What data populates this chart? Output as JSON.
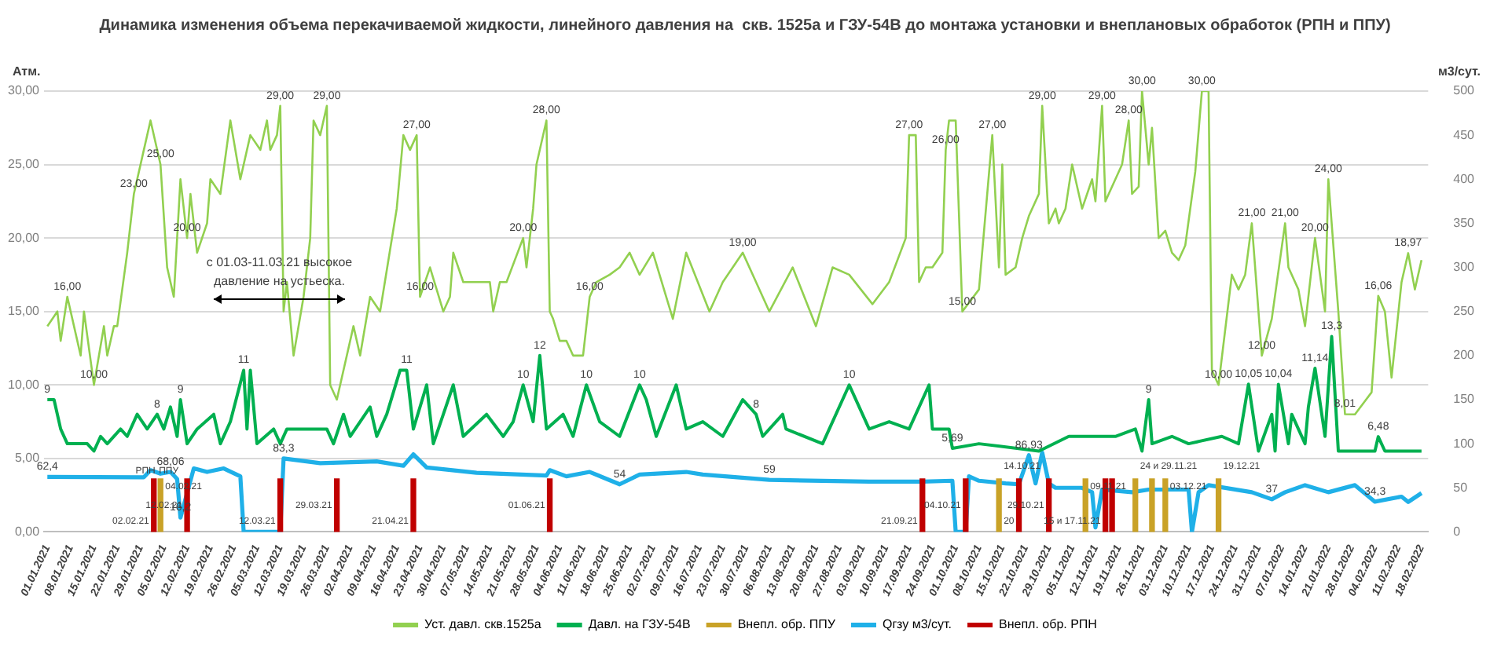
{
  "chart_data": {
    "type": "line",
    "title": "Динамика изменения объема перекачиваемой жидкости, линейного давления на  скв. 1525а и ГЗУ-54В до монтажа установки и внеплановых обработок (РПН и ППУ)",
    "ylabel": "Атм.",
    "y2label": "м3/сут.",
    "xlim": [
      "2020-12-31",
      "2022-02-20"
    ],
    "xticks": [
      {
        "value": "2021-01-01",
        "label": "01.01.2021"
      },
      {
        "value": "2021-01-08",
        "label": "08.01.2021"
      },
      {
        "value": "2021-01-15",
        "label": "15.01.2021"
      },
      {
        "value": "2021-01-22",
        "label": "22.01.2021"
      },
      {
        "value": "2021-01-29",
        "label": "29.01.2021"
      },
      {
        "value": "2021-02-05",
        "label": "05.02.2021"
      },
      {
        "value": "2021-02-12",
        "label": "12.02.2021"
      },
      {
        "value": "2021-02-19",
        "label": "19.02.2021"
      },
      {
        "value": "2021-02-26",
        "label": "26.02.2021"
      },
      {
        "value": "2021-03-05",
        "label": "05.03.2021"
      },
      {
        "value": "2021-03-12",
        "label": "12.03.2021"
      },
      {
        "value": "2021-03-19",
        "label": "19.03.2021"
      },
      {
        "value": "2021-03-26",
        "label": "26.03.2021"
      },
      {
        "value": "2021-04-02",
        "label": "02.04.2021"
      },
      {
        "value": "2021-04-09",
        "label": "09.04.2021"
      },
      {
        "value": "2021-04-16",
        "label": "16.04.2021"
      },
      {
        "value": "2021-04-23",
        "label": "23.04.2021"
      },
      {
        "value": "2021-04-30",
        "label": "30.04.2021"
      },
      {
        "value": "2021-05-07",
        "label": "07.05.2021"
      },
      {
        "value": "2021-05-14",
        "label": "14.05.2021"
      },
      {
        "value": "2021-05-21",
        "label": "21.05.2021"
      },
      {
        "value": "2021-05-28",
        "label": "28.05.2021"
      },
      {
        "value": "2021-06-04",
        "label": "04.06.2021"
      },
      {
        "value": "2021-06-11",
        "label": "11.06.2021"
      },
      {
        "value": "2021-06-18",
        "label": "18.06.2021"
      },
      {
        "value": "2021-06-25",
        "label": "25.06.2021"
      },
      {
        "value": "2021-07-02",
        "label": "02.07.2021"
      },
      {
        "value": "2021-07-09",
        "label": "09.07.2021"
      },
      {
        "value": "2021-07-16",
        "label": "16.07.2021"
      },
      {
        "value": "2021-07-23",
        "label": "23.07.2021"
      },
      {
        "value": "2021-07-30",
        "label": "30.07.2021"
      },
      {
        "value": "2021-08-06",
        "label": "06.08.2021"
      },
      {
        "value": "2021-08-13",
        "label": "13.08.2021"
      },
      {
        "value": "2021-08-20",
        "label": "20.08.2021"
      },
      {
        "value": "2021-08-27",
        "label": "27.08.2021"
      },
      {
        "value": "2021-09-03",
        "label": "03.09.2021"
      },
      {
        "value": "2021-09-10",
        "label": "10.09.2021"
      },
      {
        "value": "2021-09-17",
        "label": "17.09.2021"
      },
      {
        "value": "2021-09-24",
        "label": "24.09.2021"
      },
      {
        "value": "2021-10-01",
        "label": "01.10.2021"
      },
      {
        "value": "2021-10-08",
        "label": "08.10.2021"
      },
      {
        "value": "2021-10-15",
        "label": "15.10.2021"
      },
      {
        "value": "2021-10-22",
        "label": "22.10.2021"
      },
      {
        "value": "2021-10-29",
        "label": "29.10.2021"
      },
      {
        "value": "2021-11-05",
        "label": "05.11.2021"
      },
      {
        "value": "2021-11-12",
        "label": "12.11.2021"
      },
      {
        "value": "2021-11-19",
        "label": "19.11.2021"
      },
      {
        "value": "2021-11-26",
        "label": "26.11.2021"
      },
      {
        "value": "2021-12-03",
        "label": "03.12.2021"
      },
      {
        "value": "2021-12-10",
        "label": "10.12.2021"
      },
      {
        "value": "2021-12-17",
        "label": "17.12.2021"
      },
      {
        "value": "2021-12-24",
        "label": "24.12.2021"
      },
      {
        "value": "2021-12-31",
        "label": "31.12.2021"
      },
      {
        "value": "2022-01-07",
        "label": "07.01.2022"
      },
      {
        "value": "2022-01-14",
        "label": "14.01.2022"
      },
      {
        "value": "2022-01-21",
        "label": "21.01.2022"
      },
      {
        "value": "2022-01-28",
        "label": "28.01.2022"
      },
      {
        "value": "2022-02-04",
        "label": "04.02.2022"
      },
      {
        "value": "2022-02-11",
        "label": "11.02.2022"
      },
      {
        "value": "2022-02-18",
        "label": "18.02.2022"
      }
    ],
    "ylim": [
      0,
      30
    ],
    "yticks": [
      {
        "value": 0,
        "label": "0,00"
      },
      {
        "value": 5,
        "label": "5,00"
      },
      {
        "value": 10,
        "label": "10,00"
      },
      {
        "value": 15,
        "label": "15,00"
      },
      {
        "value": 20,
        "label": "20,00"
      },
      {
        "value": 25,
        "label": "25,00"
      },
      {
        "value": 30,
        "label": "30,00"
      }
    ],
    "y2lim": [
      0,
      500
    ],
    "y2ticks": [
      0,
      50,
      100,
      150,
      200,
      250,
      300,
      350,
      400,
      450,
      500
    ],
    "grid": "y",
    "legend": "bottom",
    "series": [
      {
        "name": "Уст. давл. скв.1525а",
        "color": "#92d050",
        "x": [
          "2021-01-01",
          "2021-01-04",
          "2021-01-05",
          "2021-01-07",
          "2021-01-09",
          "2021-01-11",
          "2021-01-12",
          "2021-01-15",
          "2021-01-18",
          "2021-01-19",
          "2021-01-21",
          "2021-01-22",
          "2021-01-25",
          "2021-01-27",
          "2021-01-30",
          "2021-02-01",
          "2021-02-04",
          "2021-02-06",
          "2021-02-08",
          "2021-02-10",
          "2021-02-12",
          "2021-02-13",
          "2021-02-15",
          "2021-02-18",
          "2021-02-19",
          "2021-02-22",
          "2021-02-25",
          "2021-02-28",
          "2021-03-03",
          "2021-03-06",
          "2021-03-08",
          "2021-03-09",
          "2021-03-11",
          "2021-03-12",
          "2021-03-13",
          "2021-03-14",
          "2021-03-16",
          "2021-03-19",
          "2021-03-21",
          "2021-03-22",
          "2021-03-24",
          "2021-03-26",
          "2021-03-27",
          "2021-03-29",
          "2021-04-03",
          "2021-04-05",
          "2021-04-08",
          "2021-04-11",
          "2021-04-16",
          "2021-04-18",
          "2021-04-20",
          "2021-04-22",
          "2021-04-23",
          "2021-04-26",
          "2021-04-30",
          "2021-05-02",
          "2021-05-03",
          "2021-05-06",
          "2021-05-14",
          "2021-05-15",
          "2021-05-17",
          "2021-05-19",
          "2021-05-24",
          "2021-05-25",
          "2021-05-27",
          "2021-05-28",
          "2021-05-31",
          "2021-06-01",
          "2021-06-02",
          "2021-06-04",
          "2021-06-06",
          "2021-06-08",
          "2021-06-11",
          "2021-06-13",
          "2021-06-15",
          "2021-06-19",
          "2021-06-22",
          "2021-06-25",
          "2021-06-28",
          "2021-07-02",
          "2021-07-08",
          "2021-07-12",
          "2021-07-19",
          "2021-07-23",
          "2021-07-29",
          "2021-08-02",
          "2021-08-06",
          "2021-08-13",
          "2021-08-20",
          "2021-08-25",
          "2021-08-30",
          "2021-09-06",
          "2021-09-11",
          "2021-09-16",
          "2021-09-17",
          "2021-09-19",
          "2021-09-20",
          "2021-09-22",
          "2021-09-24",
          "2021-09-27",
          "2021-09-28",
          "2021-09-29",
          "2021-10-01",
          "2021-10-03",
          "2021-10-08",
          "2021-10-12",
          "2021-10-14",
          "2021-10-15",
          "2021-10-16",
          "2021-10-19",
          "2021-10-21",
          "2021-10-23",
          "2021-10-26",
          "2021-10-27",
          "2021-10-29",
          "2021-10-31",
          "2021-11-01",
          "2021-11-03",
          "2021-11-05",
          "2021-11-08",
          "2021-11-11",
          "2021-11-12",
          "2021-11-14",
          "2021-11-15",
          "2021-11-18",
          "2021-11-20",
          "2021-11-22",
          "2021-11-23",
          "2021-11-25",
          "2021-11-26",
          "2021-11-28",
          "2021-11-29",
          "2021-12-01",
          "2021-12-03",
          "2021-12-05",
          "2021-12-07",
          "2021-12-09",
          "2021-12-12",
          "2021-12-14",
          "2021-12-16",
          "2021-12-17",
          "2021-12-19",
          "2021-12-23",
          "2021-12-25",
          "2021-12-27",
          "2021-12-29",
          "2022-01-01",
          "2022-01-04",
          "2022-01-08",
          "2022-01-09",
          "2022-01-12",
          "2022-01-14",
          "2022-01-17",
          "2022-01-20",
          "2022-01-21",
          "2022-01-24",
          "2022-01-26",
          "2022-01-29",
          "2022-02-03",
          "2022-02-05",
          "2022-02-07",
          "2022-02-09",
          "2022-02-12",
          "2022-02-14",
          "2022-02-16",
          "2022-02-18"
        ],
        "values": [
          14,
          15,
          13,
          16,
          14,
          12,
          15,
          10,
          14,
          12,
          14,
          14,
          19,
          23,
          26,
          28,
          25,
          18,
          16,
          24,
          20,
          23,
          19,
          21,
          24,
          23,
          28,
          24,
          27,
          26,
          28,
          26,
          27,
          29,
          15,
          17,
          12,
          16,
          20,
          28,
          27,
          29,
          10,
          9,
          14,
          12,
          16,
          15,
          22,
          27,
          26,
          27,
          16,
          18,
          15,
          16,
          19,
          17,
          17,
          15,
          17,
          17,
          20,
          18,
          22,
          25,
          28,
          15,
          14.5,
          13,
          13,
          12,
          12,
          16,
          17,
          17.5,
          18,
          19,
          17.5,
          19,
          14.5,
          19,
          15,
          17,
          19,
          17,
          15,
          18,
          14,
          18,
          17.5,
          15.5,
          17,
          20,
          27,
          27,
          17,
          18,
          18,
          19,
          26,
          28,
          28,
          15,
          16.5,
          27,
          18,
          25,
          17.5,
          18,
          20,
          21.5,
          23,
          29,
          21,
          22,
          21,
          22,
          25,
          22,
          24,
          22.5,
          29,
          22.5,
          24,
          25,
          28,
          23,
          23.5,
          30,
          25,
          27.5,
          20,
          20.5,
          19,
          18.5,
          19.5,
          24.5,
          30,
          30,
          11,
          10,
          17.5,
          16.5,
          17.5,
          21,
          12,
          14.5,
          21,
          18,
          16.5,
          14,
          20,
          15,
          24,
          15,
          8.01,
          8,
          9.5,
          16.06,
          15,
          10.5,
          17,
          18.97,
          16.5,
          18.5
        ],
        "value_labels": [
          null,
          null,
          null,
          "16,00",
          null,
          null,
          null,
          "10,00",
          null,
          null,
          null,
          null,
          null,
          "23,00",
          null,
          null,
          "25,00",
          null,
          null,
          null,
          "20,00",
          null,
          null,
          null,
          null,
          null,
          null,
          null,
          null,
          null,
          null,
          null,
          null,
          "29,00",
          null,
          null,
          null,
          null,
          null,
          null,
          null,
          "29,00",
          null,
          null,
          null,
          null,
          null,
          null,
          null,
          null,
          null,
          "27,00",
          "16,00",
          null,
          null,
          null,
          null,
          null,
          null,
          null,
          null,
          null,
          "20,00",
          null,
          null,
          null,
          "28,00",
          null,
          null,
          null,
          null,
          null,
          null,
          "16,00",
          null,
          null,
          null,
          null,
          null,
          null,
          null,
          null,
          null,
          null,
          "19,00",
          null,
          null,
          null,
          null,
          null,
          null,
          null,
          null,
          null,
          "27,00",
          null,
          null,
          null,
          null,
          null,
          "26,00",
          null,
          null,
          "15,00",
          null,
          "27,00",
          null,
          null,
          null,
          null,
          null,
          null,
          null,
          "29,00",
          null,
          null,
          null,
          null,
          null,
          null,
          null,
          null,
          "29,00",
          null,
          null,
          null,
          "28,00",
          null,
          null,
          "30,00",
          null,
          null,
          null,
          null,
          null,
          null,
          null,
          null,
          "30,00",
          null,
          null,
          "10,00",
          null,
          null,
          null,
          "21,00",
          "12,00",
          null,
          "21,00",
          null,
          null,
          null,
          "20,00",
          null,
          "24,00",
          null,
          "8,01",
          null,
          null,
          "16,06",
          null,
          null,
          null,
          "18,97",
          null,
          null
        ]
      },
      {
        "name": "Давл. на ГЗУ-54В",
        "color": "#00b050",
        "x": [
          "2021-01-01",
          "2021-01-03",
          "2021-01-05",
          "2021-01-07",
          "2021-01-13",
          "2021-01-15",
          "2021-01-17",
          "2021-01-19",
          "2021-01-23",
          "2021-01-25",
          "2021-01-28",
          "2021-01-31",
          "2021-02-03",
          "2021-02-05",
          "2021-02-07",
          "2021-02-09",
          "2021-02-10",
          "2021-02-12",
          "2021-02-15",
          "2021-02-20",
          "2021-02-22",
          "2021-02-25",
          "2021-03-01",
          "2021-03-02",
          "2021-03-03",
          "2021-03-05",
          "2021-03-10",
          "2021-03-12",
          "2021-03-14",
          "2021-03-26",
          "2021-03-28",
          "2021-03-31",
          "2021-04-02",
          "2021-04-08",
          "2021-04-10",
          "2021-04-13",
          "2021-04-17",
          "2021-04-19",
          "2021-04-21",
          "2021-04-25",
          "2021-04-27",
          "2021-05-03",
          "2021-05-06",
          "2021-05-13",
          "2021-05-18",
          "2021-05-21",
          "2021-05-24",
          "2021-05-27",
          "2021-05-29",
          "2021-05-31",
          "2021-06-05",
          "2021-06-08",
          "2021-06-12",
          "2021-06-16",
          "2021-06-22",
          "2021-06-28",
          "2021-06-30",
          "2021-07-03",
          "2021-07-09",
          "2021-07-12",
          "2021-07-17",
          "2021-07-23",
          "2021-07-29",
          "2021-08-02",
          "2021-08-04",
          "2021-08-10",
          "2021-08-11",
          "2021-08-22",
          "2021-08-28",
          "2021-08-30",
          "2021-09-05",
          "2021-09-11",
          "2021-09-17",
          "2021-09-23",
          "2021-09-24",
          "2021-09-29",
          "2021-09-30",
          "2021-10-08",
          "2021-10-26",
          "2021-11-04",
          "2021-11-13",
          "2021-11-18",
          "2021-11-24",
          "2021-11-26",
          "2021-11-28",
          "2021-11-29",
          "2021-12-05",
          "2021-12-10",
          "2021-12-20",
          "2021-12-25",
          "2021-12-28",
          "2021-12-31",
          "2022-01-04",
          "2022-01-05",
          "2022-01-06",
          "2022-01-09",
          "2022-01-10",
          "2022-01-14",
          "2022-01-15",
          "2022-01-17",
          "2022-01-20",
          "2022-01-22",
          "2022-01-24",
          "2022-01-29",
          "2022-02-04",
          "2022-02-05",
          "2022-02-07",
          "2022-02-18"
        ],
        "values": [
          9,
          9,
          7,
          6,
          6,
          5.5,
          6.5,
          6,
          7,
          6.5,
          8,
          7,
          8,
          7,
          8.5,
          6.5,
          9,
          6,
          7,
          8,
          6,
          7.5,
          11,
          7,
          11,
          6,
          7,
          6,
          7,
          7,
          6,
          8,
          6.5,
          8.5,
          6.5,
          8,
          11,
          11,
          7,
          10,
          6,
          10,
          6.5,
          8,
          6.5,
          7.5,
          10,
          7.5,
          12,
          7,
          8,
          6.5,
          10,
          7.5,
          6.5,
          10,
          9,
          6.5,
          10,
          7,
          7.5,
          6.5,
          9,
          8,
          6.5,
          8,
          7,
          6,
          9,
          10,
          7,
          7.5,
          7,
          10,
          7,
          7,
          5.69,
          6,
          5.5,
          6.5,
          6.5,
          6.5,
          7,
          5.5,
          9,
          6,
          6.5,
          6,
          6.5,
          6,
          10.05,
          5.5,
          8,
          5.5,
          10.04,
          6,
          8,
          6,
          8.5,
          11.14,
          6.5,
          13.3,
          5.5,
          5.5,
          5.5,
          6.48,
          5.5,
          5.5
        ],
        "value_labels": [
          "9",
          null,
          null,
          null,
          null,
          null,
          null,
          null,
          null,
          null,
          null,
          null,
          "8",
          null,
          null,
          null,
          "9",
          null,
          null,
          null,
          null,
          null,
          "11",
          null,
          null,
          null,
          null,
          null,
          null,
          null,
          null,
          null,
          null,
          null,
          null,
          null,
          null,
          "11",
          null,
          null,
          null,
          null,
          null,
          null,
          null,
          null,
          "10",
          null,
          "12",
          null,
          null,
          null,
          "10",
          null,
          null,
          "10",
          null,
          null,
          null,
          null,
          null,
          null,
          null,
          "8",
          null,
          null,
          null,
          null,
          null,
          "10",
          null,
          null,
          null,
          null,
          null,
          null,
          "5,69",
          null,
          null,
          null,
          null,
          null,
          null,
          null,
          "9",
          null,
          null,
          null,
          null,
          null,
          "10,05",
          null,
          null,
          null,
          "10,04",
          null,
          null,
          null,
          null,
          "11,14",
          null,
          "13,3",
          null,
          null,
          null,
          "6,48",
          null,
          null
        ]
      },
      {
        "name": "Внепл. обр. ППУ",
        "type": "bar",
        "axis": "y2",
        "color": "#c9a227",
        "x": [
          "2021-02-04",
          "2021-10-14",
          "2021-11-09",
          "2021-11-24",
          "2021-11-29",
          "2021-12-03",
          "2021-12-19"
        ],
        "values": [
          60,
          60,
          60,
          60,
          60,
          60,
          60
        ]
      },
      {
        "name": "Qгзу м3/сут.",
        "axis": "y2",
        "color": "#1fb0e8",
        "x": [
          "2021-01-01",
          "2021-01-30",
          "2021-02-01",
          "2021-02-04",
          "2021-02-07",
          "2021-02-09",
          "2021-02-10",
          "2021-02-14",
          "2021-02-18",
          "2021-02-23",
          "2021-02-28",
          "2021-03-01",
          "2021-03-12",
          "2021-03-13",
          "2021-03-24",
          "2021-04-10",
          "2021-04-18",
          "2021-04-21",
          "2021-04-25",
          "2021-05-10",
          "2021-05-31",
          "2021-06-01",
          "2021-06-06",
          "2021-06-13",
          "2021-06-22",
          "2021-06-28",
          "2021-07-12",
          "2021-07-17",
          "2021-08-06",
          "2021-09-05",
          "2021-09-21",
          "2021-09-30",
          "2021-10-01",
          "2021-10-04",
          "2021-10-05",
          "2021-10-08",
          "2021-10-16",
          "2021-10-20",
          "2021-10-23",
          "2021-10-25",
          "2021-10-27",
          "2021-10-29",
          "2021-10-31",
          "2021-11-08",
          "2021-11-11",
          "2021-11-12",
          "2021-11-14",
          "2021-11-23",
          "2021-11-28",
          "2021-12-10",
          "2021-12-11",
          "2021-12-13",
          "2021-12-16",
          "2021-12-29",
          "2022-01-04",
          "2022-01-08",
          "2022-01-14",
          "2022-01-21",
          "2022-01-29",
          "2022-02-04",
          "2022-02-12",
          "2022-02-14",
          "2022-02-18"
        ],
        "values": [
          62.4,
          62,
          70,
          66,
          68.06,
          60,
          16.2,
          72,
          68,
          72,
          63,
          0,
          0,
          83.3,
          78,
          80,
          75,
          88,
          73,
          67,
          64,
          70,
          63,
          68,
          54,
          65,
          68,
          65,
          59,
          57,
          57,
          58,
          0,
          0,
          63,
          58,
          55,
          54,
          86.93,
          55,
          90,
          55,
          50,
          50,
          45,
          5,
          48,
          45,
          48,
          48,
          0,
          45,
          53,
          45,
          37,
          45,
          53,
          45,
          53,
          34.3,
          40,
          34,
          44
        ],
        "value_labels": [
          "62,4",
          null,
          null,
          null,
          "68,06",
          null,
          "16,2",
          null,
          null,
          null,
          null,
          null,
          null,
          "83,3",
          null,
          null,
          null,
          null,
          null,
          null,
          null,
          null,
          null,
          null,
          "54",
          null,
          null,
          null,
          "59",
          null,
          null,
          null,
          null,
          null,
          null,
          null,
          null,
          null,
          "86,93",
          null,
          null,
          null,
          null,
          null,
          null,
          null,
          null,
          null,
          null,
          null,
          null,
          null,
          null,
          null,
          "37",
          null,
          null,
          null,
          null,
          "34,3",
          null,
          null,
          null
        ]
      },
      {
        "name": "Внепл. обр. РПН",
        "type": "bar",
        "axis": "y2",
        "color": "#c00000",
        "x": [
          "2021-02-02",
          "2021-02-12",
          "2021-03-12",
          "2021-03-29",
          "2021-04-21",
          "2021-06-01",
          "2021-09-21",
          "2021-10-04",
          "2021-10-20",
          "2021-10-29",
          "2021-11-15",
          "2021-11-17"
        ],
        "values": [
          60,
          60,
          60,
          60,
          60,
          60,
          60,
          60,
          60,
          60,
          60,
          60
        ]
      }
    ],
    "annotations": [
      "02.02.21",
      "РПН",
      "04.02.21",
      "ППУ",
      "12.02.21",
      "12.03.21",
      "29.03.21",
      "21.04.21",
      "01.06.21",
      "21.09.21",
      "04.10.21",
      "14.10.21",
      "20",
      "29.10.21",
      "09.11.21",
      "15 и 17.11.21",
      "24 и 29.11.21",
      "03.12.21",
      "19.12.21",
      "с 01.03-11.03.21 высокое\nдавление на устьеска."
    ]
  }
}
